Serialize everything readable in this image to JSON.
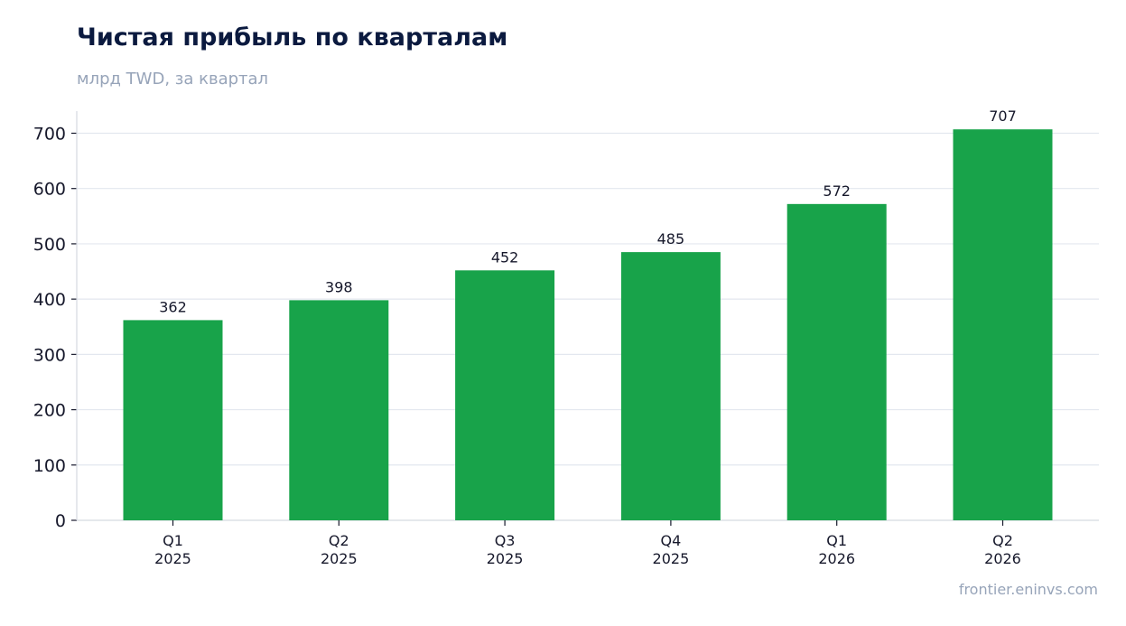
{
  "header": {
    "title": "Чистая прибыль по кварталам",
    "subtitle": "млрд TWD, за квартал"
  },
  "footer": {
    "source": "frontier.eninvs.com"
  },
  "chart_data": {
    "type": "bar",
    "categories": [
      [
        "Q1",
        "2025"
      ],
      [
        "Q2",
        "2025"
      ],
      [
        "Q3",
        "2025"
      ],
      [
        "Q4",
        "2025"
      ],
      [
        "Q1",
        "2026"
      ],
      [
        "Q2",
        "2026"
      ]
    ],
    "values": [
      362,
      398,
      452,
      485,
      572,
      707
    ],
    "data_labels": [
      "362",
      "398",
      "452",
      "485",
      "572",
      "707"
    ],
    "title": "Чистая прибыль по кварталам",
    "subtitle": "млрд TWD, за квартал",
    "xlabel": "",
    "ylabel": "",
    "ylim": [
      0,
      740
    ],
    "yticks": [
      0,
      100,
      200,
      300,
      400,
      500,
      600,
      700
    ],
    "grid": "horizontal",
    "legend": "none",
    "colors": {
      "bar": "#18a34a",
      "grid": "#e3e7ef",
      "axis": "#d5d9e1",
      "text": "#16182b"
    }
  }
}
